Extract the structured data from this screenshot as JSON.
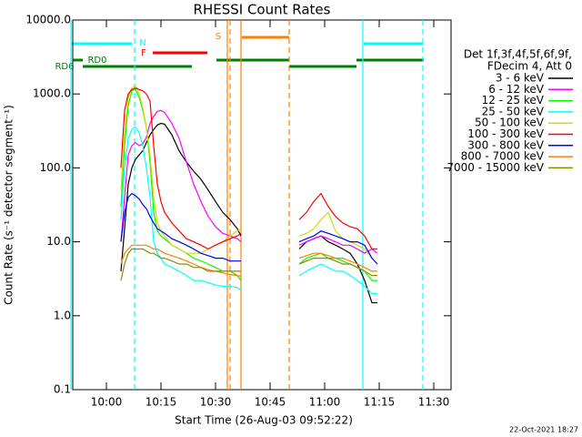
{
  "chart_data": {
    "type": "line",
    "title": "RHESSI Count Rates",
    "xlabel": "Start Time (26-Aug-03 09:52:22)",
    "ylabel": "Count Rate (s⁻¹ detector segment⁻¹)",
    "legend_title": [
      "Det 1f,3f,4f,5f,6f,9f,",
      "FDecim 4, Att 0"
    ],
    "footer": "22-Oct-2021 18:27",
    "log_y": true,
    "xlim": [
      590.75,
      694.75
    ],
    "ylim": [
      0.1,
      10000
    ],
    "xticks": [
      {
        "value": 600,
        "label": "10:00"
      },
      {
        "value": 615,
        "label": "10:15"
      },
      {
        "value": 630,
        "label": "10:30"
      },
      {
        "value": 645,
        "label": "10:45"
      },
      {
        "value": 660,
        "label": "11:00"
      },
      {
        "value": 675,
        "label": "11:15"
      },
      {
        "value": 690,
        "label": "11:30"
      }
    ],
    "yticks": [
      0.1,
      {
        "value": 1,
        "label": "1.0"
      },
      {
        "value": 10,
        "label": "10.0"
      },
      {
        "value": 100,
        "label": "100.0"
      },
      {
        "value": 1000,
        "label": "1000.0"
      },
      {
        "value": 10000,
        "label": "10000.0"
      }
    ],
    "x": [
      604,
      605,
      606,
      607,
      608,
      609,
      610,
      611,
      612,
      613,
      614,
      615,
      616,
      618,
      620,
      622,
      624,
      626,
      628,
      630,
      632,
      634,
      636,
      637,
      645,
      653,
      655,
      657,
      659,
      661,
      663,
      665,
      667,
      669,
      671,
      673,
      674.5
    ],
    "series": [
      {
        "name": "3 - 6 keV",
        "color": "#000000",
        "values": [
          4,
          15,
          60,
          100,
          130,
          150,
          170,
          220,
          280,
          330,
          380,
          400,
          390,
          280,
          170,
          120,
          90,
          70,
          50,
          35,
          25,
          20,
          15,
          12,
          null,
          8,
          10,
          11,
          12,
          10,
          9,
          8,
          7,
          5,
          3,
          1.5,
          1.5
        ]
      },
      {
        "name": "6 - 12 keV",
        "color": "#ff00ff",
        "values": [
          10,
          40,
          150,
          200,
          220,
          200,
          210,
          260,
          400,
          500,
          580,
          600,
          560,
          400,
          250,
          120,
          60,
          35,
          22,
          16,
          13,
          12,
          11,
          10,
          null,
          9,
          10,
          11,
          12,
          11,
          10,
          9,
          9,
          8,
          7,
          8,
          7
        ]
      },
      {
        "name": "12 - 25 keV",
        "color": "#00ff00",
        "values": [
          30,
          200,
          700,
          1100,
          1150,
          900,
          600,
          350,
          120,
          25,
          14,
          12,
          11,
          9,
          8,
          7,
          6,
          5.5,
          5,
          4.5,
          4,
          4,
          3.5,
          3,
          null,
          5,
          6,
          6.5,
          7,
          6,
          6,
          5.5,
          5,
          4.5,
          4,
          3,
          3
        ]
      },
      {
        "name": "25 - 50 keV",
        "color": "#00ffff",
        "values": [
          20,
          100,
          250,
          330,
          360,
          300,
          200,
          100,
          40,
          10,
          7,
          6,
          5,
          4.5,
          4,
          3.5,
          3,
          3,
          2.8,
          2.6,
          2.5,
          2.5,
          2.4,
          2.2,
          null,
          3.5,
          4,
          4.5,
          5,
          4.5,
          4,
          4,
          3.5,
          3,
          2.5,
          2,
          2
        ]
      },
      {
        "name": "50 - 100 keV",
        "color": "#d8d800",
        "values": [
          50,
          300,
          900,
          1200,
          1300,
          1000,
          650,
          350,
          150,
          40,
          18,
          14,
          12,
          9,
          8,
          7,
          7,
          7,
          8,
          9,
          10,
          12,
          14,
          15,
          null,
          12,
          13,
          15,
          20,
          25,
          14,
          11,
          10,
          9,
          8,
          6,
          5
        ]
      },
      {
        "name": "100 - 300 keV",
        "color": "#ff0000",
        "values": [
          100,
          600,
          1000,
          1150,
          1200,
          1150,
          1100,
          1000,
          800,
          200,
          60,
          35,
          25,
          18,
          14,
          11,
          10,
          9,
          8,
          9,
          10,
          11,
          12,
          13,
          null,
          20,
          25,
          35,
          45,
          30,
          22,
          18,
          16,
          15,
          12,
          8,
          8
        ]
      },
      {
        "name": "300 - 800 keV",
        "color": "#0000ff",
        "values": [
          10,
          25,
          40,
          45,
          42,
          38,
          32,
          28,
          22,
          18,
          15,
          14,
          13,
          11,
          10,
          9,
          8,
          7,
          6.5,
          6,
          6,
          5.5,
          5.5,
          5.5,
          null,
          10,
          11,
          12,
          14,
          13,
          12,
          11,
          10,
          10,
          9,
          6,
          5
        ]
      },
      {
        "name": "800 - 7000 keV",
        "color": "#ff8000",
        "values": [
          5,
          7,
          8,
          9,
          9,
          9,
          9,
          9,
          8.5,
          8,
          8,
          7.5,
          7,
          6.5,
          6,
          5.5,
          5,
          4.5,
          4.2,
          4,
          3.8,
          3.6,
          3.5,
          3.4,
          null,
          6,
          6.5,
          7,
          7,
          6.5,
          6,
          6,
          5.5,
          5,
          4.5,
          4,
          4
        ]
      },
      {
        "name": "7000 - 15000 keV",
        "color": "#8b8b00",
        "values": [
          3,
          5,
          7,
          8,
          8,
          8,
          8,
          7.5,
          7,
          7,
          6.5,
          6,
          6,
          5.5,
          5,
          5,
          4.5,
          4.5,
          4,
          4,
          4,
          4,
          4,
          4,
          null,
          5,
          5.5,
          6,
          6,
          6,
          5.5,
          5,
          5,
          4.5,
          4,
          3.5,
          3.5
        ]
      }
    ],
    "vlines": [
      {
        "x": 590.25,
        "color": "#00ffff",
        "dash": false
      },
      {
        "x": 607.75,
        "color": "#00ffff",
        "dash": true
      },
      {
        "x": 633.25,
        "color": "#ff8000",
        "dash": false
      },
      {
        "x": 634,
        "color": "#ff8000",
        "dash": true
      },
      {
        "x": 637,
        "color": "#ff8000",
        "dash": false
      },
      {
        "x": 650.25,
        "color": "#ff8000",
        "dash": true
      },
      {
        "x": 670.5,
        "color": "#00ffff",
        "dash": false
      },
      {
        "x": 687,
        "color": "#00ffff",
        "dash": true
      }
    ],
    "flags": [
      {
        "label": "N",
        "color": "#00ffff",
        "spans": [
          [
            590.5,
            607
          ],
          [
            670.75,
            687
          ]
        ]
      },
      {
        "label": "F",
        "color": "#ff0000",
        "spans": [
          [
            612.75,
            627.75
          ]
        ]
      },
      {
        "label": "S",
        "color": "#ff8000",
        "spans": [
          [
            637.25,
            650.25
          ]
        ]
      },
      {
        "label": "RD0",
        "color": "#008000",
        "spans": [
          [
            590.75,
            593.5
          ],
          [
            630.25,
            650.25
          ],
          [
            668.75,
            687.25
          ]
        ]
      },
      {
        "label": "RD6",
        "color": "#008000",
        "spans": [
          [
            593.5,
            623.5
          ],
          [
            650.25,
            668.75
          ]
        ]
      }
    ]
  }
}
